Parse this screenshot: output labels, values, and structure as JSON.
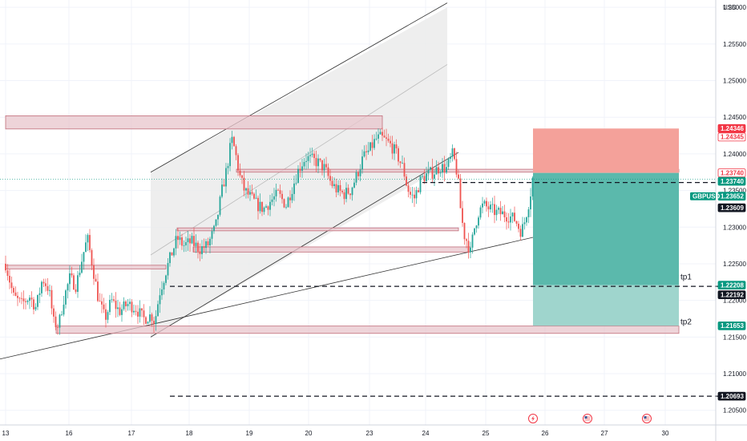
{
  "currency": "USD",
  "chart_data": {
    "type": "candlestick",
    "symbol": "GBPUSD",
    "ylim": [
      1.203,
      1.261
    ],
    "y_ticks": [
      1.205,
      1.21,
      1.215,
      1.22,
      1.225,
      1.23,
      1.235,
      1.24,
      1.245,
      1.25,
      1.255,
      1.26
    ],
    "x_ticks": [
      {
        "label": "13",
        "t": 0
      },
      {
        "label": "16",
        "t": 79
      },
      {
        "label": "17",
        "t": 157
      },
      {
        "label": "18",
        "t": 229
      },
      {
        "label": "19",
        "t": 304
      },
      {
        "label": "20",
        "t": 378
      },
      {
        "label": "23",
        "t": 454
      },
      {
        "label": "24",
        "t": 524
      },
      {
        "label": "25",
        "t": 599
      },
      {
        "label": "26",
        "t": 673
      },
      {
        "label": "27",
        "t": 747
      },
      {
        "label": "30",
        "t": 823
      }
    ],
    "price_path": [
      [
        0,
        1.225
      ],
      [
        10,
        1.2205
      ],
      [
        20,
        1.2195
      ],
      [
        30,
        1.2205
      ],
      [
        38,
        1.219
      ],
      [
        46,
        1.223
      ],
      [
        54,
        1.2215
      ],
      [
        60,
        1.217
      ],
      [
        66,
        1.2165
      ],
      [
        72,
        1.22
      ],
      [
        80,
        1.223
      ],
      [
        88,
        1.222
      ],
      [
        96,
        1.226
      ],
      [
        102,
        1.2285
      ],
      [
        108,
        1.225
      ],
      [
        116,
        1.22
      ],
      [
        124,
        1.2175
      ],
      [
        132,
        1.22
      ],
      [
        142,
        1.2185
      ],
      [
        152,
        1.2195
      ],
      [
        162,
        1.219
      ],
      [
        172,
        1.2175
      ],
      [
        182,
        1.218
      ],
      [
        186,
        1.217
      ],
      [
        192,
        1.221
      ],
      [
        200,
        1.224
      ],
      [
        206,
        1.226
      ],
      [
        214,
        1.2285
      ],
      [
        222,
        1.2275
      ],
      [
        232,
        1.228
      ],
      [
        242,
        1.227
      ],
      [
        252,
        1.2275
      ],
      [
        262,
        1.23
      ],
      [
        270,
        1.235
      ],
      [
        276,
        1.238
      ],
      [
        282,
        1.242
      ],
      [
        286,
        1.2405
      ],
      [
        292,
        1.237
      ],
      [
        298,
        1.235
      ],
      [
        306,
        1.234
      ],
      [
        314,
        1.233
      ],
      [
        322,
        1.2325
      ],
      [
        330,
        1.2335
      ],
      [
        340,
        1.2345
      ],
      [
        350,
        1.233
      ],
      [
        358,
        1.2355
      ],
      [
        366,
        1.238
      ],
      [
        374,
        1.2395
      ],
      [
        382,
        1.2392
      ],
      [
        390,
        1.2388
      ],
      [
        398,
        1.238
      ],
      [
        406,
        1.236
      ],
      [
        414,
        1.235
      ],
      [
        422,
        1.2345
      ],
      [
        430,
        1.235
      ],
      [
        438,
        1.237
      ],
      [
        446,
        1.2395
      ],
      [
        454,
        1.2405
      ],
      [
        462,
        1.242
      ],
      [
        468,
        1.2422
      ],
      [
        474,
        1.2418
      ],
      [
        482,
        1.241
      ],
      [
        490,
        1.2395
      ],
      [
        496,
        1.238
      ],
      [
        500,
        1.236
      ],
      [
        504,
        1.2345
      ],
      [
        510,
        1.234
      ],
      [
        518,
        1.2365
      ],
      [
        526,
        1.2372
      ],
      [
        534,
        1.2375
      ],
      [
        542,
        1.2382
      ],
      [
        550,
        1.238
      ],
      [
        558,
        1.24
      ],
      [
        564,
        1.237
      ],
      [
        568,
        1.232
      ],
      [
        572,
        1.229
      ],
      [
        576,
        1.228
      ],
      [
        580,
        1.2265
      ],
      [
        584,
        1.2295
      ],
      [
        590,
        1.232
      ],
      [
        596,
        1.233
      ],
      [
        604,
        1.2325
      ],
      [
        612,
        1.232
      ],
      [
        620,
        1.2318
      ],
      [
        628,
        1.2315
      ],
      [
        636,
        1.231
      ],
      [
        642,
        1.2295
      ],
      [
        646,
        1.23
      ],
      [
        650,
        1.232
      ],
      [
        654,
        1.234
      ],
      [
        658,
        1.237
      ]
    ],
    "zones": [
      {
        "y1": 1.2434,
        "y2": 1.2452,
        "t1": 0,
        "t2": 470
      },
      {
        "y1": 1.2243,
        "y2": 1.2248,
        "t1": 0,
        "t2": 200
      },
      {
        "y1": 1.2155,
        "y2": 1.2165,
        "t1": 63,
        "t2": 840
      },
      {
        "y1": 1.2295,
        "y2": 1.2299,
        "t1": 214,
        "t2": 565
      },
      {
        "y1": 1.2266,
        "y2": 1.2273,
        "t1": 234,
        "t2": 580
      },
      {
        "y1": 1.2375,
        "y2": 1.2379,
        "t1": 288,
        "t2": 840
      }
    ],
    "position": {
      "stop_loss": 1.24346,
      "entry": 1.2374,
      "tp1": 1.22208,
      "tp2": 1.21653,
      "t_start": 658,
      "t_end": 840,
      "label_tp1": "tp1",
      "label_tp2": "tp2"
    },
    "levels": [
      {
        "price": 1.23609,
        "t1": 520,
        "t2": 890
      },
      {
        "price": 1.22192,
        "t1": 205,
        "t2": 890
      },
      {
        "price": 1.20693,
        "t1": 205,
        "t2": 890
      }
    ],
    "current_price": 1.23652,
    "price_tags": [
      {
        "text": "1.24346",
        "price": 1.24346,
        "kind": "red"
      },
      {
        "text": "1.24345",
        "price": 1.24345,
        "kind": "red-outline"
      },
      {
        "text": "1.23740",
        "price": 1.2374,
        "kind": "red-outline"
      },
      {
        "text": "1.23740",
        "price": 1.2374,
        "kind": "teal"
      },
      {
        "text": "1.23652",
        "price": 1.23652,
        "kind": "teal-dark"
      },
      {
        "text": "1.23609",
        "price": 1.23609,
        "kind": "dark"
      },
      {
        "text": "1.22208",
        "price": 1.22208,
        "kind": "teal"
      },
      {
        "text": "1.22192",
        "price": 1.22192,
        "kind": "dark"
      },
      {
        "text": "1.21653",
        "price": 1.21653,
        "kind": "teal"
      },
      {
        "text": "1.20693",
        "price": 1.20693,
        "kind": "dark"
      }
    ],
    "symbol_tag": "GBPUSD",
    "events": [
      {
        "t": 658,
        "icon": "lightning-icon"
      },
      {
        "t": 726,
        "icon": "us-flag-icon"
      },
      {
        "t": 800,
        "icon": "us-flag-icon"
      }
    ],
    "colors": {
      "zone_fill": "#e8c6cc",
      "zone_stroke": "#c26e7b",
      "stop_fill": "#f4a19a",
      "target_fill": "#5bb9ac",
      "target_fill_light": "#9fd5cd",
      "candle_up": "#26a69a",
      "candle_down": "#ef5350",
      "channel_fill": "#ebebeb",
      "tag_red": "#f23645",
      "tag_teal": "#089981",
      "tag_dark": "#131722"
    }
  }
}
